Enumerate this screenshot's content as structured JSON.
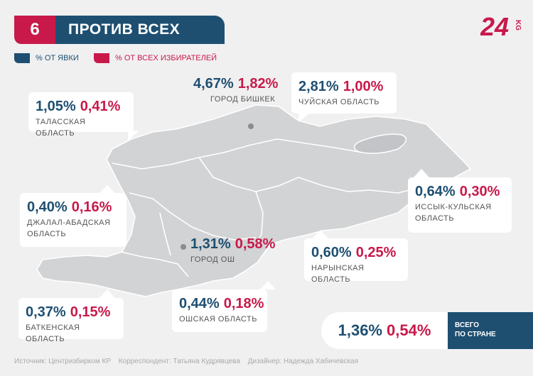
{
  "header": {
    "number": "6",
    "title": "ПРОТИВ ВСЕХ"
  },
  "logo": {
    "text": "24",
    "sub": "KG"
  },
  "legend": [
    {
      "label": "% ОТ ЯВКИ",
      "color": "#1e4f71"
    },
    {
      "label": "% ОТ ВСЕХ ИЗБИРАТЕЛЕЙ",
      "color": "#c8194a"
    }
  ],
  "regions": {
    "talas": {
      "turnout": "1,05%",
      "all": "0,41%",
      "name": "ТАЛАССКАЯ ОБЛАСТЬ"
    },
    "bishkek": {
      "turnout": "4,67%",
      "all": "1,82%",
      "name": "ГОРОД БИШКЕК"
    },
    "chui": {
      "turnout": "2,81%",
      "all": "1,00%",
      "name": "ЧУЙСКАЯ ОБЛАСТЬ"
    },
    "issyk": {
      "turnout": "0,64%",
      "all": "0,30%",
      "name_1": "ИССЫК-КУЛЬСКАЯ",
      "name_2": "ОБЛАСТЬ"
    },
    "jalal": {
      "turnout": "0,40%",
      "all": "0,16%",
      "name_1": "ДЖАЛАЛ-АБАДСКАЯ",
      "name_2": "ОБЛАСТЬ"
    },
    "osh_city": {
      "turnout": "1,31%",
      "all": "0,58%",
      "name": "ГОРОД ОШ"
    },
    "naryn": {
      "turnout": "0,60%",
      "all": "0,25%",
      "name": "НАРЫНСКАЯ ОБЛАСТЬ"
    },
    "batken": {
      "turnout": "0,37%",
      "all": "0,15%",
      "name": "БАТКЕНСКАЯ ОБЛАСТЬ"
    },
    "osh": {
      "turnout": "0,44%",
      "all": "0,18%",
      "name": "ОШСКАЯ ОБЛАСТЬ"
    }
  },
  "total": {
    "turnout": "1,36%",
    "all": "0,54%",
    "label_1": "ВСЕГО",
    "label_2": "ПО СТРАНЕ"
  },
  "footer": {
    "source": "Источник: Центризбирком КР",
    "correspondent": "Корреспондент: Татьяна Кудрявцева",
    "designer": "Дизайнер: Надежда Хабичевская"
  }
}
